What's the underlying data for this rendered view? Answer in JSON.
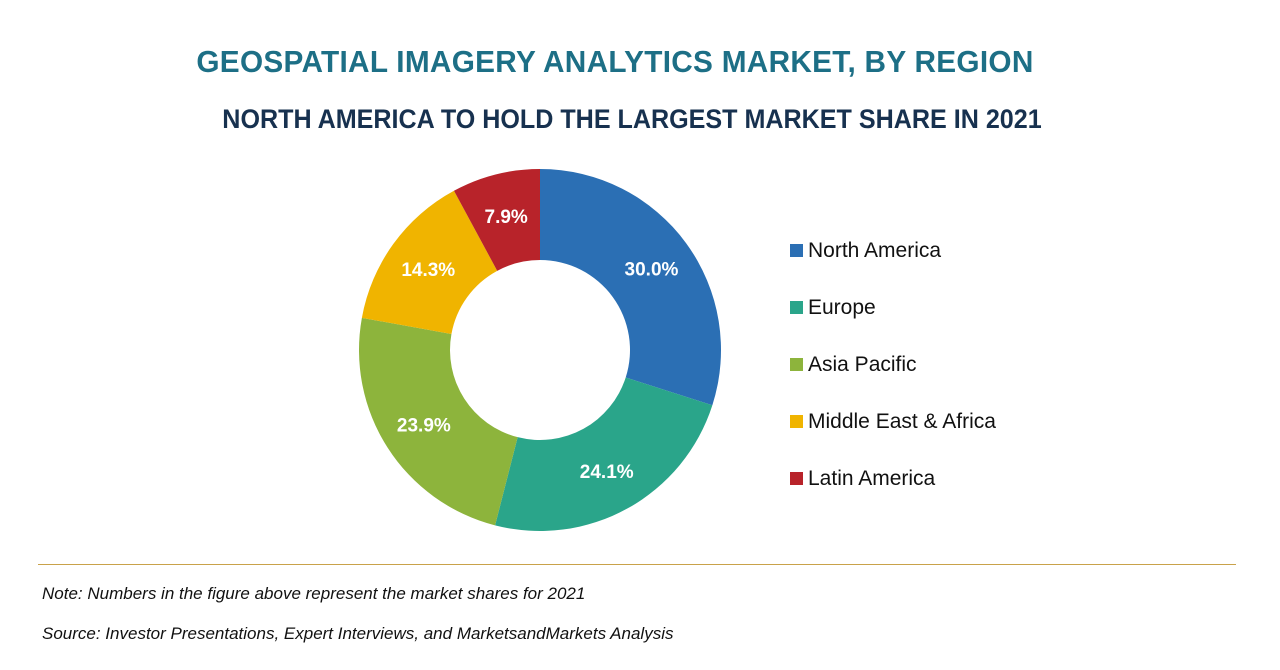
{
  "chart_data": {
    "type": "pie",
    "title": "GEOSPATIAL IMAGERY ANALYTICS MARKET, BY REGION",
    "subtitle": "NORTH AMERICA TO HOLD THE LARGEST MARKET SHARE IN 2021",
    "categories": [
      "North America",
      "Europe",
      "Asia Pacific",
      "Middle East & Africa",
      "Latin America"
    ],
    "values": [
      30.0,
      24.1,
      23.9,
      14.3,
      7.9
    ],
    "value_labels": [
      "30.0%",
      "24.1%",
      "23.9%",
      "14.3%",
      "7.9%"
    ],
    "colors": [
      "#2b6fb4",
      "#2aa58a",
      "#8db43c",
      "#f0b400",
      "#b8232a"
    ],
    "unit": "%",
    "legend_position": "right",
    "donut": true
  },
  "footer": {
    "note": "Note: Numbers in the figure above represent the market shares for 2021",
    "source": "Source: Investor Presentations, Expert Interviews, and MarketsandMarkets Analysis"
  }
}
